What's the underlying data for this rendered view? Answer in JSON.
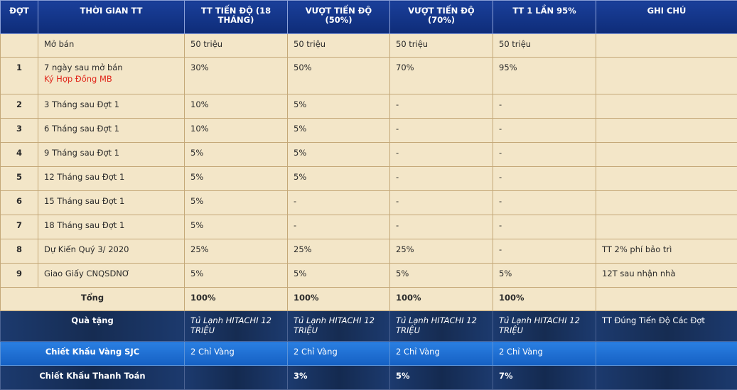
{
  "headers": [
    "ĐỢT",
    "THỜI GIAN TT",
    "TT TIẾN ĐỘ (18 THÁNG)",
    "VƯỢT TIẾN ĐỘ (50%)",
    "VƯỢT TIẾN ĐỘ (70%)",
    "TT 1 LẦN 95%",
    "GHI CHÚ"
  ],
  "rows": [
    {
      "stt": "",
      "time": "Mở bán",
      "sub": "",
      "c1": "50 triệu",
      "c2": "50 triệu",
      "c3": "50 triệu",
      "c4": "50 triệu",
      "note": ""
    },
    {
      "stt": "1",
      "time": "7 ngày sau mở bán",
      "sub": "Ký Hợp Đồng MB",
      "c1": "30%",
      "c2": "50%",
      "c3": "70%",
      "c4": "95%",
      "note": ""
    },
    {
      "stt": "2",
      "time": "3 Tháng sau Đợt 1",
      "sub": "",
      "c1": "10%",
      "c2": "5%",
      "c3": "-",
      "c4": "-",
      "note": ""
    },
    {
      "stt": "3",
      "time": "6 Tháng sau Đợt 1",
      "sub": "",
      "c1": "10%",
      "c2": "5%",
      "c3": "-",
      "c4": "-",
      "note": ""
    },
    {
      "stt": "4",
      "time": "9 Tháng sau Đợt 1",
      "sub": "",
      "c1": "5%",
      "c2": "5%",
      "c3": "-",
      "c4": "-",
      "note": ""
    },
    {
      "stt": "5",
      "time": "12 Tháng sau Đợt 1",
      "sub": "",
      "c1": "5%",
      "c2": "5%",
      "c3": "-",
      "c4": "-",
      "note": ""
    },
    {
      "stt": "6",
      "time": "15 Tháng sau Đợt 1",
      "sub": "",
      "c1": "5%",
      "c2": "-",
      "c3": "-",
      "c4": "-",
      "note": ""
    },
    {
      "stt": "7",
      "time": "18 Tháng sau Đợt 1",
      "sub": "",
      "c1": "5%",
      "c2": "-",
      "c3": "-",
      "c4": "-",
      "note": ""
    },
    {
      "stt": "8",
      "time": "Dự Kiến Quý 3/ 2020",
      "sub": "",
      "c1": "25%",
      "c2": "25%",
      "c3": "25%",
      "c4": "-",
      "note": "TT 2% phí bảo trì"
    },
    {
      "stt": "9",
      "time": "Giao Giấy CNQSDNƠ",
      "sub": "",
      "c1": "5%",
      "c2": "5%",
      "c3": "5%",
      "c4": "5%",
      "note": "12T sau nhận nhà"
    }
  ],
  "total": {
    "label": "Tổng",
    "c1": "100%",
    "c2": "100%",
    "c3": "100%",
    "c4": "100%"
  },
  "gift": {
    "label": "Quà tặng",
    "c1": "Tủ Lạnh HITACHI 12 TRIỆU",
    "c2": "Tủ Lạnh HITACHI 12 TRIỆU",
    "c3": "Tủ Lạnh HITACHI 12 TRIỆU",
    "c4": "Tủ Lạnh HITACHI 12 TRIỆU",
    "note": "TT Đúng Tiến Độ Các Đợt"
  },
  "gold": {
    "label": "Chiết Khấu Vàng SJC",
    "c1": "2 Chỉ Vàng",
    "c2": "2 Chỉ Vàng",
    "c3": "2 Chỉ Vàng",
    "c4": "2 Chỉ Vàng",
    "note": ""
  },
  "payment": {
    "label": "Chiết Khấu Thanh Toán",
    "c1": "",
    "c2": "3%",
    "c3": "5%",
    "c4": "7%",
    "note": ""
  },
  "colors": {
    "header_bg": "#0e2c78",
    "cell_bg": "#f3e6c8",
    "red_text": "#e0261b",
    "gold_row_bg": "#1560c3",
    "dark_row_bg": "#162c52"
  }
}
